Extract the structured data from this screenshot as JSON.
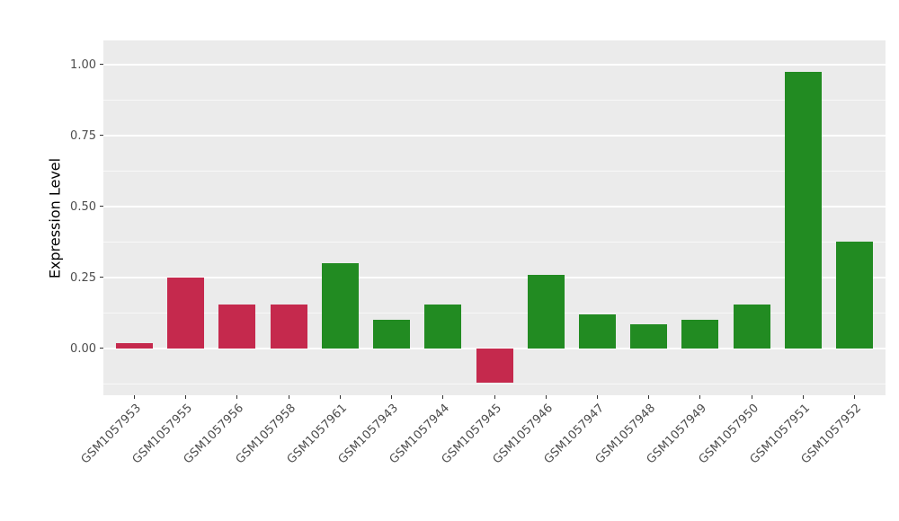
{
  "chart_data": {
    "type": "bar",
    "title": "",
    "xlabel": "",
    "ylabel": "Expression Level",
    "categories": [
      "GSM1057953",
      "GSM1057955",
      "GSM1057956",
      "GSM1057958",
      "GSM1057961",
      "GSM1057943",
      "GSM1057944",
      "GSM1057945",
      "GSM1057946",
      "GSM1057947",
      "GSM1057948",
      "GSM1057949",
      "GSM1057950",
      "GSM1057951",
      "GSM1057952"
    ],
    "values": [
      0.02,
      0.25,
      0.155,
      0.155,
      0.3,
      0.1,
      0.155,
      -0.12,
      0.26,
      0.12,
      0.085,
      0.1,
      0.155,
      0.975,
      0.375
    ],
    "bar_colors": [
      "#C5294D",
      "#C5294D",
      "#C5294D",
      "#C5294D",
      "#228B22",
      "#228B22",
      "#228B22",
      "#C5294D",
      "#228B22",
      "#228B22",
      "#228B22",
      "#228B22",
      "#228B22",
      "#228B22",
      "#228B22"
    ],
    "ylim": [
      -0.165,
      1.085
    ],
    "yticks": [
      {
        "label": "0.00",
        "value": 0
      },
      {
        "label": "0.25",
        "value": 0.25
      },
      {
        "label": "0.50",
        "value": 0.5
      },
      {
        "label": "0.75",
        "value": 0.75
      },
      {
        "label": "1.00",
        "value": 1.0
      }
    ],
    "minor_gridlines": [
      -0.125,
      0.125,
      0.375,
      0.625,
      0.875
    ],
    "grid": true,
    "legend": "none",
    "colors": {
      "panel_background": "#EBEBEB",
      "gridline": "#FFFFFF",
      "axis_text": "#4D4D4D",
      "tick_mark": "#333333",
      "down_bar": "#C5294D",
      "up_bar": "#228B22"
    }
  }
}
